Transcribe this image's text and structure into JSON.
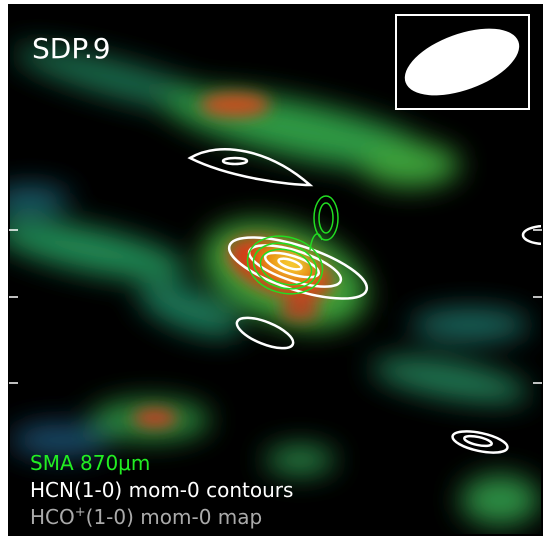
{
  "panel": {
    "title": "SDP.9",
    "legend": {
      "sma": "SMA 870μm",
      "hcn": "HCN(1-0) mom-0 contours",
      "hco": {
        "base": "HCO",
        "sup": "+",
        "rest": "(1-0) mom-0 map"
      }
    }
  }
}
